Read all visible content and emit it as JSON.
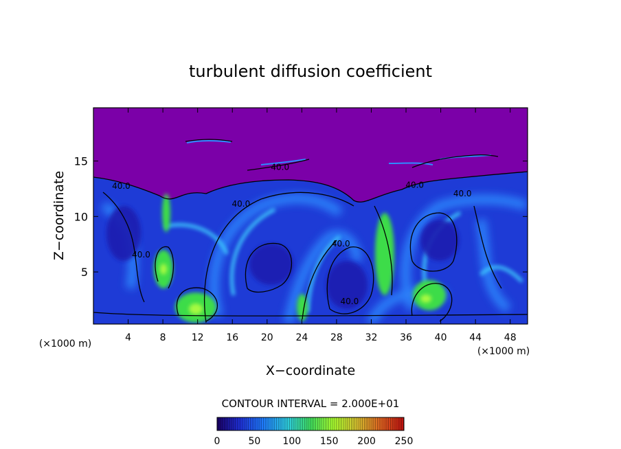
{
  "chart_data": {
    "type": "heatmap",
    "title": "turbulent diffusion coefficient",
    "xlabel": "X−coordinate",
    "ylabel": "Z−coordinate",
    "x_unit": "(×1000 m)",
    "y_unit": "(×1000 m)",
    "xlim": [
      0,
      50
    ],
    "ylim": [
      0.3,
      19.8
    ],
    "xticks": [
      4,
      8,
      12,
      16,
      20,
      24,
      28,
      32,
      36,
      40,
      44,
      48
    ],
    "yticks": [
      5,
      10,
      15
    ],
    "grid": false,
    "contour_interval_text": "CONTOUR INTERVAL = 2.000E+01",
    "contour_labels": [
      {
        "text": "40.0",
        "x": 3.2,
        "y": 12.5
      },
      {
        "text": "40.0",
        "x": 5.5,
        "y": 6.3
      },
      {
        "text": "40.0",
        "x": 17.0,
        "y": 10.9
      },
      {
        "text": "40.0",
        "x": 28.5,
        "y": 7.3
      },
      {
        "text": "40.0",
        "x": 29.5,
        "y": 2.1
      },
      {
        "text": "40.0",
        "x": 37.0,
        "y": 12.6
      },
      {
        "text": "40.0",
        "x": 42.5,
        "y": 11.8
      },
      {
        "text": "40.0",
        "x": 21.5,
        "y": 14.2
      }
    ],
    "colorbar": {
      "min": 0,
      "max": 250,
      "ticks": [
        0,
        50,
        100,
        150,
        200,
        250
      ],
      "colors": [
        "#1a0066",
        "#1f2fd9",
        "#1f7fff",
        "#2fd0e0",
        "#40e060",
        "#a8ff30",
        "#d8c030",
        "#e06020",
        "#c01010"
      ]
    },
    "colors": {
      "background": "#7b00a8",
      "low": "#1e3bd6",
      "mid": "#2f8cff",
      "high": "#3ddc4a",
      "contour": "#000000"
    }
  }
}
